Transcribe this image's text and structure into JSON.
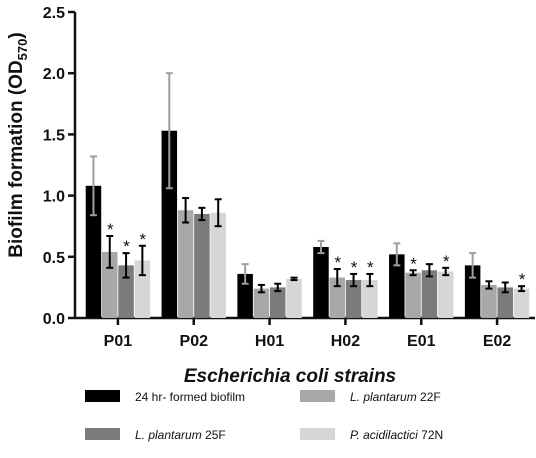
{
  "chart_data": {
    "type": "bar",
    "xlabel": "Escherichia coli strains",
    "ylabel_main": "Biofilm formation (OD",
    "ylabel_sub": "570",
    "ylabel_close": ")",
    "ylim": [
      0,
      2.5
    ],
    "yticks": [
      "0.0",
      "0.5",
      "1.0",
      "1.5",
      "2.0",
      "2.5"
    ],
    "grid": false,
    "legend_position": "bottom",
    "categories": [
      "P01",
      "P02",
      "H01",
      "H02",
      "E01",
      "E02"
    ],
    "series": [
      {
        "name": "24 hr- formed biofilm",
        "name_italic": "",
        "name_rest": "24 hr- formed biofilm",
        "color": "#000000",
        "errcolor": "#9e9e9e",
        "values": [
          1.08,
          1.53,
          0.36,
          0.58,
          0.52,
          0.43
        ],
        "errors": [
          0.24,
          0.47,
          0.08,
          0.05,
          0.09,
          0.1
        ],
        "significant": [
          false,
          false,
          false,
          false,
          false,
          false
        ]
      },
      {
        "name": "L. plantarum 22F",
        "name_italic": "L. plantarum",
        "name_rest": " 22F",
        "color": "#a8a8a8",
        "errcolor": "#000000",
        "values": [
          0.54,
          0.88,
          0.24,
          0.33,
          0.37,
          0.27
        ],
        "errors": [
          0.13,
          0.1,
          0.03,
          0.07,
          0.02,
          0.03
        ],
        "significant": [
          true,
          false,
          false,
          true,
          true,
          false
        ]
      },
      {
        "name": "L. plantarum 25F",
        "name_italic": "L. plantarum",
        "name_rest": " 25F",
        "color": "#7b7b7b",
        "errcolor": "#000000",
        "values": [
          0.43,
          0.85,
          0.25,
          0.31,
          0.39,
          0.25
        ],
        "errors": [
          0.1,
          0.05,
          0.03,
          0.05,
          0.05,
          0.04
        ],
        "significant": [
          true,
          false,
          false,
          true,
          false,
          false
        ]
      },
      {
        "name": "P. acidilactici 72N",
        "name_italic": "P. acidilactici",
        "name_rest": " 72N",
        "color": "#d6d6d6",
        "errcolor": "#000000",
        "values": [
          0.47,
          0.86,
          0.32,
          0.31,
          0.38,
          0.24
        ],
        "errors": [
          0.12,
          0.11,
          0.01,
          0.05,
          0.03,
          0.02
        ],
        "significant": [
          true,
          false,
          false,
          true,
          true,
          true
        ]
      }
    ],
    "significance_marker": "*"
  }
}
